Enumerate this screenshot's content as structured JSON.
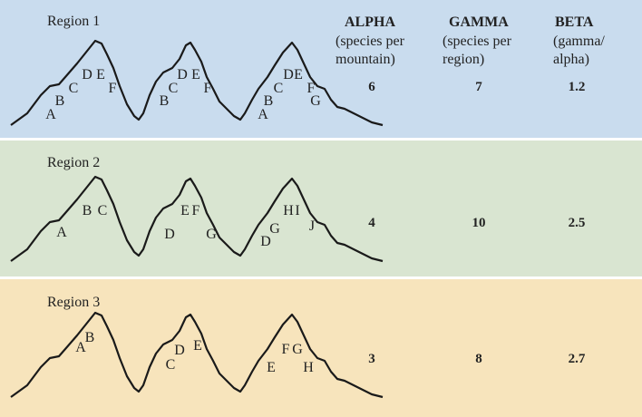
{
  "header": {
    "alpha": {
      "title": "ALPHA",
      "lines": [
        "(species per",
        "mountain)"
      ]
    },
    "gamma": {
      "title": "GAMMA",
      "lines": [
        "(species per",
        "region)"
      ]
    },
    "beta": {
      "title": "BETA",
      "lines": [
        "(gamma/",
        "alpha)"
      ]
    }
  },
  "regions": [
    {
      "name": "Region 1",
      "mountains": [
        [
          "A",
          "B",
          "C",
          "D",
          "E",
          "F"
        ],
        [
          "B",
          "C",
          "D",
          "E",
          "F"
        ],
        [
          "A",
          "B",
          "C",
          "D",
          "E",
          "F",
          "G"
        ]
      ],
      "alpha": 6,
      "gamma": 7,
      "beta": 1.2
    },
    {
      "name": "Region 2",
      "mountains": [
        [
          "A",
          "B",
          "C"
        ],
        [
          "D",
          "E",
          "F",
          "G"
        ],
        [
          "D",
          "G",
          "H",
          "I",
          "J"
        ]
      ],
      "alpha": 4,
      "gamma": 10,
      "beta": 2.5
    },
    {
      "name": "Region 3",
      "mountains": [
        [
          "A",
          "B"
        ],
        [
          "C",
          "D",
          "E"
        ],
        [
          "E",
          "F",
          "G",
          "H"
        ]
      ],
      "alpha": 3,
      "gamma": 8,
      "beta": 2.7
    }
  ]
}
